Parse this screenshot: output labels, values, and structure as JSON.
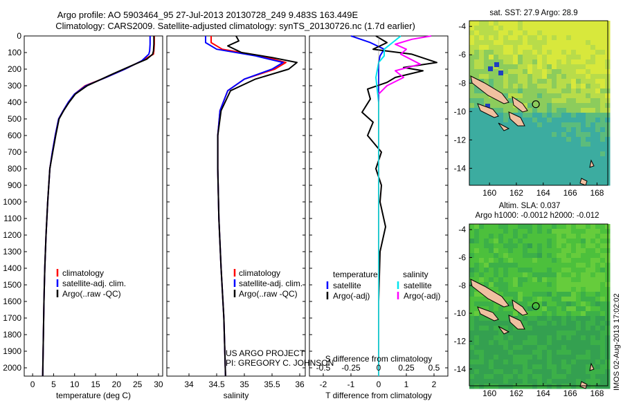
{
  "titles": {
    "line1": "Argo profile: AO 5903464_95 27-Jul-2013 20130728_249 9.483S 163.449E",
    "line2": "Climatology: CARS2009. Satellite-adjusted climatology: synTS_20130726.nc (1.7d earlier)"
  },
  "colors": {
    "climatology": "#ff0000",
    "satellite": "#0000ff",
    "argo": "#000000",
    "satellite_s": "#00e5ee",
    "argo_s": "#ff00ff",
    "land": "#f0c0a0",
    "sea": "#4cc84c"
  },
  "chart_data": [
    {
      "id": "temperature",
      "type": "line",
      "xlabel": "temperature (deg C)",
      "ylabel": "",
      "xlim": [
        -2,
        31
      ],
      "ylim": [
        2050,
        0
      ],
      "xticks": [
        "0",
        "5",
        "10",
        "15",
        "20",
        "25",
        "30"
      ],
      "yticks": [
        "0",
        "100",
        "200",
        "300",
        "400",
        "500",
        "600",
        "700",
        "800",
        "900",
        "1000",
        "1100",
        "1200",
        "1300",
        "1400",
        "1500",
        "1600",
        "1700",
        "1800",
        "1900",
        "2000"
      ],
      "legend": [
        "climatology",
        "satellite-adj. clim.",
        "Argo(..raw -QC)"
      ],
      "series": [
        {
          "name": "climatology",
          "color": "#ff0000",
          "x": [
            29.0,
            29.0,
            28.9,
            28.8,
            26.0,
            22.0,
            17.5,
            12.5,
            10.0,
            8.5,
            7.3,
            6.2,
            5.4,
            4.7,
            4.1,
            3.6,
            3.2,
            2.9,
            2.7,
            2.4
          ],
          "y": [
            0,
            50,
            90,
            110,
            150,
            200,
            250,
            300,
            350,
            400,
            450,
            500,
            600,
            700,
            800,
            1000,
            1200,
            1400,
            1600,
            2050
          ]
        },
        {
          "name": "satellite-adj. clim.",
          "color": "#0000ff",
          "x": [
            28.0,
            28.0,
            27.9,
            27.7,
            26.0,
            22.0,
            17.5,
            12.7,
            10.0,
            8.5,
            7.3,
            6.2,
            5.4,
            4.7,
            4.1,
            3.6,
            3.2,
            2.9,
            2.7,
            2.4
          ],
          "y": [
            0,
            50,
            90,
            110,
            150,
            200,
            250,
            300,
            350,
            400,
            450,
            500,
            600,
            700,
            800,
            1000,
            1200,
            1400,
            1600,
            2050
          ]
        },
        {
          "name": "Argo(..raw -QC)",
          "color": "#000000",
          "x": [
            28.9,
            28.9,
            28.8,
            28.6,
            27.2,
            23.5,
            19.0,
            13.0,
            10.2,
            8.7,
            7.4,
            6.3,
            5.5,
            4.8,
            4.1,
            3.6,
            3.2,
            2.9,
            2.7,
            2.4
          ],
          "y": [
            0,
            50,
            90,
            110,
            140,
            180,
            230,
            300,
            350,
            400,
            450,
            500,
            600,
            700,
            800,
            1000,
            1200,
            1400,
            1600,
            2050
          ]
        }
      ]
    },
    {
      "id": "salinity",
      "type": "line",
      "xlabel": "salinity",
      "xlim": [
        33.6,
        36.1
      ],
      "ylim": [
        2050,
        0
      ],
      "xticks": [
        "34",
        "34.5",
        "35",
        "35.5",
        "36"
      ],
      "legend": [
        "climatology",
        "satellite-adj. clim.",
        "Argo(..raw -QC)"
      ],
      "annotations": [
        "US ARGO PROJECT",
        "PI: GREGORY C. JOHNSON"
      ],
      "series": [
        {
          "name": "climatology",
          "color": "#ff0000",
          "x": [
            34.4,
            34.4,
            34.6,
            35.3,
            35.75,
            35.55,
            35.0,
            34.7,
            34.56,
            34.52,
            34.52,
            34.54,
            34.58,
            34.63,
            34.66
          ],
          "y": [
            0,
            40,
            80,
            120,
            160,
            200,
            260,
            330,
            450,
            600,
            800,
            1100,
            1400,
            1700,
            2050
          ]
        },
        {
          "name": "satellite-adj. clim.",
          "color": "#0000ff",
          "x": [
            34.3,
            34.3,
            34.5,
            35.2,
            35.7,
            35.5,
            35.0,
            34.7,
            34.56,
            34.52,
            34.52,
            34.54,
            34.58,
            34.63,
            34.66
          ],
          "y": [
            0,
            40,
            80,
            120,
            160,
            200,
            260,
            330,
            450,
            600,
            800,
            1100,
            1400,
            1700,
            2050
          ]
        },
        {
          "name": "Argo(..raw -QC)",
          "color": "#000000",
          "x": [
            34.85,
            34.9,
            34.7,
            34.95,
            35.5,
            35.95,
            35.8,
            35.2,
            34.75,
            34.58,
            34.52,
            34.52,
            34.54,
            34.58,
            34.63,
            34.66
          ],
          "y": [
            0,
            30,
            60,
            100,
            130,
            160,
            200,
            260,
            330,
            450,
            600,
            800,
            1100,
            1400,
            1700,
            2050
          ]
        }
      ]
    },
    {
      "id": "difference",
      "type": "line",
      "xlabel": "T difference from climatology",
      "xlabel_top": "S difference from climatology",
      "xlim": [
        -2.5,
        2.5
      ],
      "ylim": [
        2050,
        0
      ],
      "xticks": [
        "-2",
        "-1",
        "0",
        "1",
        "2"
      ],
      "xticks_s": [
        "-0.5",
        "-0.25",
        "0",
        "0.25",
        "0.5"
      ],
      "legend_headers": [
        "temperature",
        "salinity"
      ],
      "legend": [
        "satellite",
        "Argo(-adj)",
        "satellite",
        "Argo(-adj)"
      ],
      "series": [
        {
          "name": "temperature satellite",
          "color": "#0000ff",
          "x": [
            -1.0,
            -0.3,
            0.2,
            0.05,
            0,
            0,
            0,
            0,
            0,
            0
          ],
          "y": [
            0,
            40,
            80,
            120,
            160,
            250,
            400,
            700,
            1200,
            2050
          ]
        },
        {
          "name": "temperature Argo(-adj)",
          "color": "#000000",
          "x": [
            -0.1,
            0.3,
            -0.2,
            1.2,
            2.1,
            0.9,
            1.6,
            0.6,
            0.3,
            -0.4,
            -0.3,
            -0.6,
            -0.2,
            -0.4,
            0.1,
            -0.1,
            0.1,
            0.05,
            0.25,
            0.05,
            0,
            0
          ],
          "y": [
            0,
            40,
            80,
            110,
            160,
            190,
            210,
            250,
            280,
            320,
            380,
            460,
            520,
            600,
            700,
            800,
            900,
            1000,
            1150,
            1300,
            1600,
            2050
          ]
        },
        {
          "name": "salinity satellite",
          "color": "#00e5ee",
          "x": [
            0.8,
            0.5,
            0.2,
            0.2,
            0,
            -0.1,
            0,
            0,
            0
          ],
          "y": [
            0,
            40,
            80,
            120,
            160,
            250,
            400,
            1000,
            2050
          ]
        },
        {
          "name": "salinity Argo(-adj)",
          "color": "#ff00ff",
          "x": [
            1.9,
            1.2,
            0.6,
            1.0,
            0.8,
            1.5,
            0.6,
            0.9,
            0.3,
            0
          ],
          "y": [
            0,
            20,
            50,
            80,
            110,
            170,
            210,
            250,
            300,
            350
          ]
        }
      ]
    },
    {
      "id": "sst_map",
      "type": "heatmap",
      "title": "sat. SST: 27.9 Argo: 28.9",
      "xticks": [
        "160",
        "162",
        "164",
        "166",
        "168"
      ],
      "yticks": [
        "-4",
        "-6",
        "-8",
        "-10",
        "-12",
        "-14"
      ],
      "xlim": [
        158.5,
        168.8
      ],
      "ylim": [
        -15.2,
        -3.6
      ],
      "marker": {
        "lon": 163.449,
        "lat": -9.483
      }
    },
    {
      "id": "sla_map",
      "type": "heatmap",
      "title": "Altim. SLA: 0.037",
      "subtitle": "Argo h1000: -0.0012 h2000: -0.012",
      "xticks": [
        "160",
        "162",
        "164",
        "166",
        "168"
      ],
      "yticks": [
        "-4",
        "-6",
        "-8",
        "-10",
        "-12",
        "-14"
      ],
      "xlim": [
        158.5,
        168.8
      ],
      "ylim": [
        -15.2,
        -3.6
      ],
      "marker": {
        "lon": 163.449,
        "lat": -9.483
      }
    }
  ],
  "footer_stamp": "IMOS 02-Aug-2013 17:02:02"
}
